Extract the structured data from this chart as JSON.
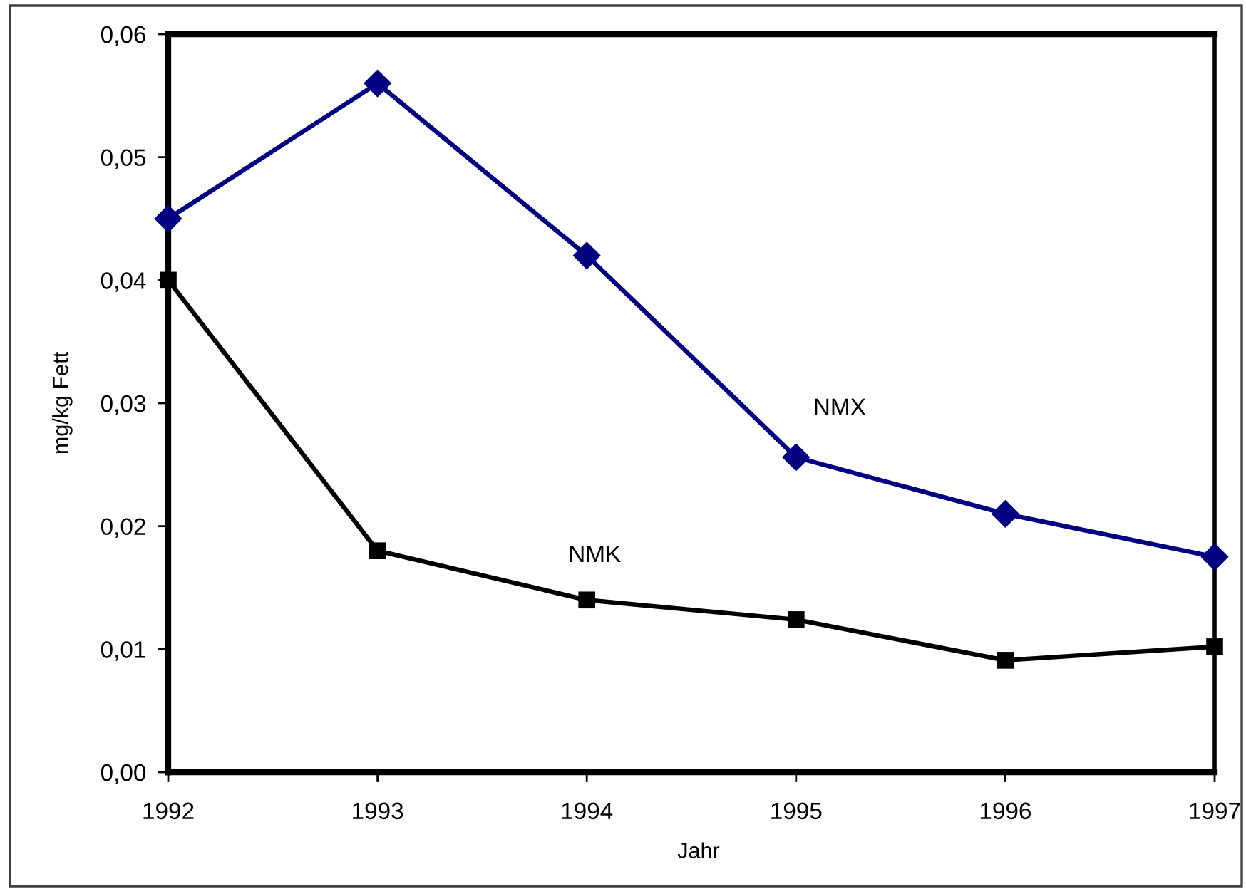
{
  "chart_data": {
    "type": "line",
    "xlabel": "Jahr",
    "ylabel": "mg/kg Fett",
    "x": [
      1992,
      1993,
      1994,
      1995,
      1996,
      1997
    ],
    "series": [
      {
        "name": "NMX",
        "color": "#000080",
        "marker": "diamond",
        "values": [
          0.045,
          0.056,
          0.042,
          0.0256,
          0.021,
          0.0175
        ]
      },
      {
        "name": "NMK",
        "color": "#000000",
        "marker": "square",
        "values": [
          0.04,
          0.018,
          0.014,
          0.0124,
          0.0091,
          0.0102
        ]
      }
    ],
    "xlim": [
      1992,
      1997
    ],
    "xticks": [
      1992,
      1993,
      1994,
      1995,
      1996,
      1997
    ],
    "ylim": [
      0,
      0.06
    ],
    "yticks": [
      {
        "value": 0,
        "label": "0,00"
      },
      {
        "value": 0.01,
        "label": "0,01"
      },
      {
        "value": 0.02,
        "label": "0,02"
      },
      {
        "value": 0.03,
        "label": "0,03"
      },
      {
        "value": 0.04,
        "label": "0,04"
      },
      {
        "value": 0.05,
        "label": "0,05"
      },
      {
        "value": 0.06,
        "label": "0,06"
      }
    ],
    "line_style": "solid"
  }
}
